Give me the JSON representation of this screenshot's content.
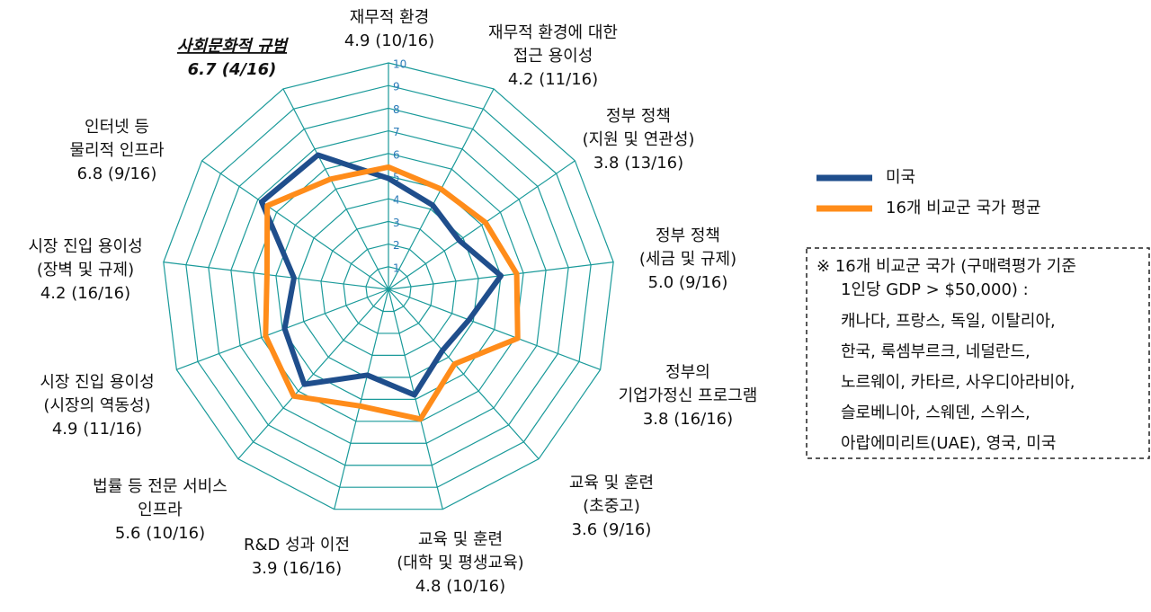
{
  "chart_data": {
    "type": "radar",
    "categories": [
      [
        "재무적 환경"
      ],
      [
        "재무적 환경에 대한",
        "접근 용이성"
      ],
      [
        "정부 정책",
        "(지원 및 연관성)"
      ],
      [
        "정부 정책",
        "(세금 및 규제)"
      ],
      [
        "정부의",
        "기업가정신 프로그램"
      ],
      [
        "교육 및 훈련",
        "(초중고)"
      ],
      [
        "교육 및 훈련",
        "(대학 및 평생교육)"
      ],
      [
        "R&D 성과 이전"
      ],
      [
        "법률 등 전문 서비스",
        "인프라"
      ],
      [
        "시장 진입 용이성",
        "(시장의 역동성)"
      ],
      [
        "시장 진입 용이성",
        "(장벽 및 규제)"
      ],
      [
        "인터넷 등",
        "물리적 인프라"
      ],
      [
        "사회문화적 규범"
      ]
    ],
    "highlight": "사회문화적 규범",
    "series": [
      {
        "name": "미국",
        "color": "#1f4e8c",
        "values": [
          4.9,
          4.2,
          3.8,
          5.0,
          3.8,
          3.6,
          4.8,
          3.9,
          5.6,
          4.9,
          4.2,
          6.8,
          6.7
        ],
        "value_labels": [
          "4.9 (10/16)",
          "4.2 (11/16)",
          "3.8 (13/16)",
          "5.0 (9/16)",
          "3.8 (16/16)",
          "3.6 (9/16)",
          "4.8 (10/16)",
          "3.9 (16/16)",
          "5.6 (10/16)",
          "4.9 (11/16)",
          "4.2 (16/16)",
          "6.8 (9/16)",
          "6.7 (4/16)"
        ]
      },
      {
        "name": "16개 비교군 국가 평균",
        "color": "#ff8c1a",
        "values": [
          5.4,
          5.0,
          5.2,
          5.7,
          6.1,
          4.4,
          5.9,
          5.3,
          6.3,
          5.8,
          5.4,
          6.5,
          5.5
        ]
      }
    ],
    "rlim": [
      0,
      10
    ],
    "rticks": [
      1,
      2,
      3,
      4,
      5,
      6,
      7,
      8,
      9,
      10
    ],
    "grid_color": "#1a9a9a",
    "note": {
      "lines": [
        "※ 16개 비교군 국가 (구매력평가 기준",
        "1인당 GDP > $50,000) :",
        "캐나다, 프랑스, 독일, 이탈리아,",
        "한국, 룩셈부르크, 네덜란드,",
        "노르웨이, 카타르, 사우디아라비아,",
        "슬로베니아, 스웨덴, 스위스,",
        "아랍에미리트(UAE), 영국, 미국"
      ]
    }
  }
}
